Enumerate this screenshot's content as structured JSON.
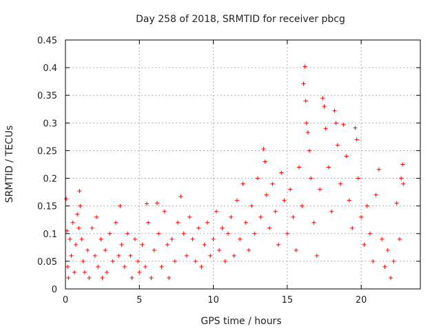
{
  "chart_data": {
    "type": "scatter",
    "title": "Day 258 of 2018, SRMTID for receiver pbcg",
    "xlabel": "GPS time / hours",
    "ylabel": "SRMTID / TECUs",
    "xlim": [
      0,
      24
    ],
    "ylim": [
      0,
      0.45
    ],
    "xticks": [
      0,
      5,
      10,
      15,
      20
    ],
    "xtick_labels": [
      "0",
      "5",
      "10",
      "15",
      "20"
    ],
    "yticks": [
      0,
      0.05,
      0.1,
      0.15,
      0.2,
      0.25,
      0.3,
      0.35,
      0.4,
      0.45
    ],
    "ytick_labels": [
      "0",
      "0.05",
      "0.1",
      "0.15",
      "0.2",
      "0.25",
      "0.3",
      "0.35",
      "0.4",
      "0.45"
    ],
    "grid": true,
    "marker": "+",
    "marker_color": "#ff0000",
    "series": [
      {
        "name": "SRMTID",
        "points": [
          [
            0.05,
            0.163
          ],
          [
            0.1,
            0.105
          ],
          [
            0.15,
            0.04
          ],
          [
            0.2,
            0.02
          ],
          [
            0.3,
            0.09
          ],
          [
            0.4,
            0.06
          ],
          [
            0.5,
            0.12
          ],
          [
            0.6,
            0.03
          ],
          [
            0.7,
            0.08
          ],
          [
            0.8,
            0.135
          ],
          [
            0.9,
            0.11
          ],
          [
            0.95,
            0.177
          ],
          [
            1.0,
            0.15
          ],
          [
            1.1,
            0.09
          ],
          [
            1.2,
            0.05
          ],
          [
            1.3,
            0.03
          ],
          [
            1.5,
            0.07
          ],
          [
            1.6,
            0.02
          ],
          [
            1.8,
            0.11
          ],
          [
            2.0,
            0.06
          ],
          [
            2.1,
            0.13
          ],
          [
            2.2,
            0.04
          ],
          [
            2.4,
            0.09
          ],
          [
            2.5,
            0.02
          ],
          [
            2.7,
            0.07
          ],
          [
            2.8,
            0.03
          ],
          [
            3.0,
            0.1
          ],
          [
            3.2,
            0.05
          ],
          [
            3.4,
            0.12
          ],
          [
            3.6,
            0.06
          ],
          [
            3.7,
            0.15
          ],
          [
            3.8,
            0.08
          ],
          [
            4.0,
            0.04
          ],
          [
            4.2,
            0.1
          ],
          [
            4.4,
            0.06
          ],
          [
            4.5,
            0.02
          ],
          [
            4.7,
            0.09
          ],
          [
            4.9,
            0.05
          ],
          [
            5.0,
            0.03
          ],
          [
            5.2,
            0.08
          ],
          [
            5.4,
            0.04
          ],
          [
            5.5,
            0.154
          ],
          [
            5.6,
            0.12
          ],
          [
            5.8,
            0.02
          ],
          [
            6.0,
            0.07
          ],
          [
            6.2,
            0.155
          ],
          [
            6.3,
            0.1
          ],
          [
            6.5,
            0.04
          ],
          [
            6.7,
            0.14
          ],
          [
            6.9,
            0.08
          ],
          [
            7.0,
            0.02
          ],
          [
            7.2,
            0.09
          ],
          [
            7.4,
            0.05
          ],
          [
            7.6,
            0.12
          ],
          [
            7.8,
            0.167
          ],
          [
            8.0,
            0.1
          ],
          [
            8.2,
            0.06
          ],
          [
            8.4,
            0.13
          ],
          [
            8.6,
            0.09
          ],
          [
            8.8,
            0.05
          ],
          [
            9.0,
            0.11
          ],
          [
            9.2,
            0.04
          ],
          [
            9.4,
            0.08
          ],
          [
            9.6,
            0.12
          ],
          [
            9.8,
            0.06
          ],
          [
            10.0,
            0.09
          ],
          [
            10.2,
            0.14
          ],
          [
            10.4,
            0.07
          ],
          [
            10.6,
            0.11
          ],
          [
            10.8,
            0.05
          ],
          [
            11.0,
            0.1
          ],
          [
            11.2,
            0.13
          ],
          [
            11.4,
            0.06
          ],
          [
            11.6,
            0.16
          ],
          [
            11.8,
            0.09
          ],
          [
            12.0,
            0.19
          ],
          [
            12.2,
            0.12
          ],
          [
            12.4,
            0.07
          ],
          [
            12.6,
            0.15
          ],
          [
            12.8,
            0.1
          ],
          [
            13.0,
            0.2
          ],
          [
            13.2,
            0.13
          ],
          [
            13.4,
            0.253
          ],
          [
            13.5,
            0.23
          ],
          [
            13.6,
            0.17
          ],
          [
            13.8,
            0.11
          ],
          [
            14.0,
            0.19
          ],
          [
            14.2,
            0.14
          ],
          [
            14.4,
            0.08
          ],
          [
            14.6,
            0.21
          ],
          [
            14.8,
            0.16
          ],
          [
            15.0,
            0.1
          ],
          [
            15.2,
            0.18
          ],
          [
            15.4,
            0.13
          ],
          [
            15.6,
            0.07
          ],
          [
            15.8,
            0.22
          ],
          [
            16.0,
            0.15
          ],
          [
            16.1,
            0.371
          ],
          [
            16.2,
            0.402
          ],
          [
            16.25,
            0.34
          ],
          [
            16.3,
            0.3
          ],
          [
            16.4,
            0.283
          ],
          [
            16.5,
            0.25
          ],
          [
            16.6,
            0.2
          ],
          [
            16.8,
            0.12
          ],
          [
            17.0,
            0.06
          ],
          [
            17.2,
            0.18
          ],
          [
            17.4,
            0.345
          ],
          [
            17.5,
            0.33
          ],
          [
            17.6,
            0.29
          ],
          [
            17.8,
            0.22
          ],
          [
            18.0,
            0.14
          ],
          [
            18.2,
            0.322
          ],
          [
            18.3,
            0.3
          ],
          [
            18.4,
            0.26
          ],
          [
            18.6,
            0.19
          ],
          [
            18.8,
            0.297
          ],
          [
            19.0,
            0.24
          ],
          [
            19.2,
            0.16
          ],
          [
            19.4,
            0.11
          ],
          [
            19.6,
            0.291
          ],
          [
            19.7,
            0.27
          ],
          [
            19.8,
            0.2
          ],
          [
            20.0,
            0.13
          ],
          [
            20.2,
            0.08
          ],
          [
            20.4,
            0.15
          ],
          [
            20.6,
            0.1
          ],
          [
            20.8,
            0.05
          ],
          [
            21.0,
            0.17
          ],
          [
            21.2,
            0.216
          ],
          [
            21.4,
            0.09
          ],
          [
            21.6,
            0.04
          ],
          [
            21.8,
            0.07
          ],
          [
            22.0,
            0.02
          ],
          [
            22.2,
            0.05
          ],
          [
            22.4,
            0.155
          ],
          [
            22.6,
            0.09
          ],
          [
            22.7,
            0.2
          ],
          [
            22.8,
            0.225
          ],
          [
            22.85,
            0.19
          ]
        ]
      }
    ]
  }
}
